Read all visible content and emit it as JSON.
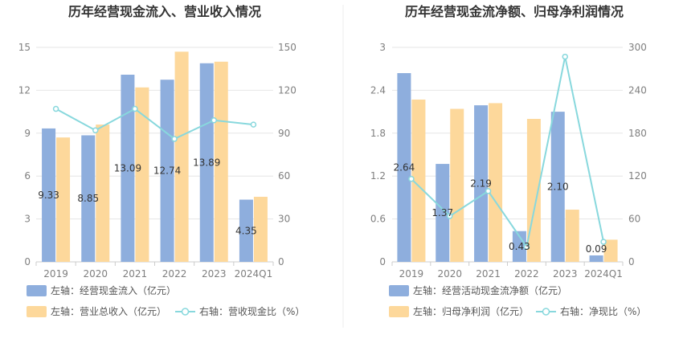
{
  "chart_data": [
    {
      "type": "bar",
      "title": "历年经营现金流入、营业收入情况",
      "categories": [
        "2019",
        "2020",
        "2021",
        "2022",
        "2023",
        "2024Q1"
      ],
      "y_left": {
        "ticks": [
          "0",
          "3",
          "6",
          "9",
          "12",
          "15"
        ],
        "lim": [
          0,
          15
        ]
      },
      "y_right": {
        "ticks": [
          "0",
          "30",
          "60",
          "90",
          "120",
          "150"
        ],
        "lim": [
          0,
          150
        ]
      },
      "grid": true,
      "legend_position": "bottom",
      "series": [
        {
          "name": "左轴：经营现金流入（亿元）",
          "kind": "bar",
          "axis": "left",
          "color": "#8eaedd",
          "values": [
            9.33,
            8.85,
            13.09,
            12.74,
            13.89,
            4.35
          ],
          "labels": [
            "9.33",
            "8.85",
            "13.09",
            "12.74",
            "13.89",
            "4.35"
          ]
        },
        {
          "name": "左轴：营业总收入（亿元）",
          "kind": "bar",
          "axis": "left",
          "color": "#fdd89b",
          "values": [
            8.7,
            9.6,
            12.2,
            14.7,
            14.0,
            4.55
          ]
        },
        {
          "name": "右轴：营收现金比（%）",
          "kind": "line",
          "axis": "right",
          "color": "#88d8dd",
          "values": [
            107,
            92,
            107,
            86,
            99,
            96
          ]
        }
      ]
    },
    {
      "type": "bar",
      "title": "历年经营现金流净额、归母净利润情况",
      "categories": [
        "2019",
        "2020",
        "2021",
        "2022",
        "2023",
        "2024Q1"
      ],
      "y_left": {
        "ticks": [
          "0",
          "0.6",
          "1.2",
          "1.8",
          "2.4",
          "3"
        ],
        "lim": [
          0,
          3
        ]
      },
      "y_right": {
        "ticks": [
          "0",
          "60",
          "120",
          "180",
          "240",
          "300"
        ],
        "lim": [
          0,
          300
        ]
      },
      "grid": true,
      "legend_position": "bottom",
      "series": [
        {
          "name": "左轴：经营活动现金流净额（亿元）",
          "kind": "bar",
          "axis": "left",
          "color": "#8eaedd",
          "values": [
            2.64,
            1.37,
            2.19,
            0.43,
            2.1,
            0.09
          ],
          "labels": [
            "2.64",
            "1.37",
            "2.19",
            "0.43",
            "2.10",
            "0.09"
          ]
        },
        {
          "name": "左轴：归母净利润（亿元）",
          "kind": "bar",
          "axis": "left",
          "color": "#fdd89b",
          "values": [
            2.27,
            2.14,
            2.22,
            2.0,
            0.73,
            0.31
          ]
        },
        {
          "name": "右轴：净现比（%）",
          "kind": "line",
          "axis": "right",
          "color": "#88d8dd",
          "values": [
            116,
            64,
            99,
            21,
            287,
            28
          ]
        }
      ]
    }
  ]
}
